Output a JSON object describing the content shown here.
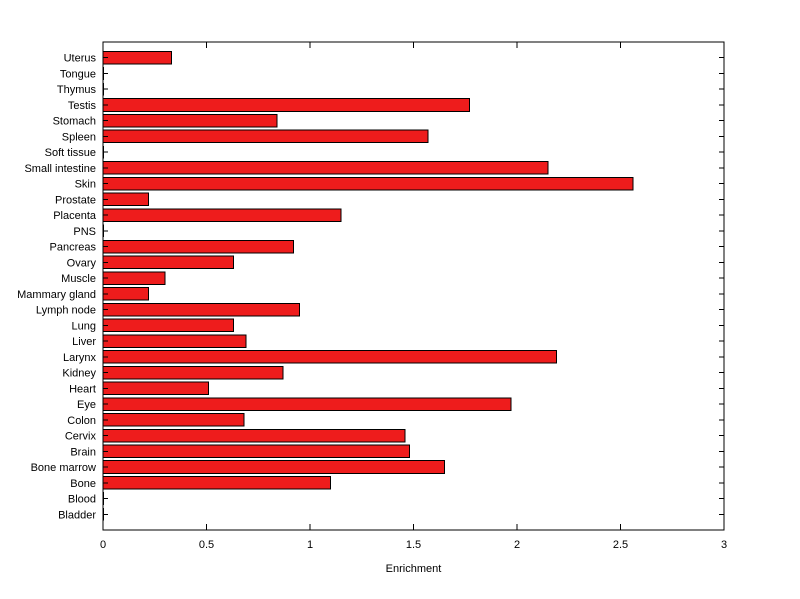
{
  "chart_data": {
    "type": "bar",
    "orientation": "horizontal",
    "title": "",
    "xlabel": "Enrichment",
    "ylabel": "",
    "xlim": [
      0,
      3
    ],
    "xtick_values": [
      0,
      0.5,
      1,
      1.5,
      2,
      2.5,
      3
    ],
    "xtick_labels": [
      "0",
      "0.5",
      "1",
      "1.5",
      "2",
      "2.5",
      "3"
    ],
    "grid": false,
    "legend": "none",
    "bar_color": "#ee1c1c",
    "bar_edge_color": "#000000",
    "axis_color": "#000000",
    "background_color": "#ffffff",
    "categories_top_to_bottom": [
      "Uterus",
      "Tongue",
      "Thymus",
      "Testis",
      "Stomach",
      "Spleen",
      "Soft tissue",
      "Small intestine",
      "Skin",
      "Prostate",
      "Placenta",
      "PNS",
      "Pancreas",
      "Ovary",
      "Muscle",
      "Mammary gland",
      "Lymph node",
      "Lung",
      "Liver",
      "Larynx",
      "Kidney",
      "Heart",
      "Eye",
      "Colon",
      "Cervix",
      "Brain",
      "Bone marrow",
      "Bone",
      "Blood",
      "Bladder"
    ],
    "values_top_to_bottom": [
      0.33,
      0,
      0,
      1.77,
      0.84,
      1.57,
      0,
      2.15,
      2.56,
      0.22,
      1.15,
      0,
      0.92,
      0.63,
      0.3,
      0.22,
      0.95,
      0.63,
      0.69,
      2.19,
      0.87,
      0.51,
      1.97,
      0.68,
      1.46,
      1.48,
      1.65,
      1.1,
      0,
      0
    ]
  }
}
